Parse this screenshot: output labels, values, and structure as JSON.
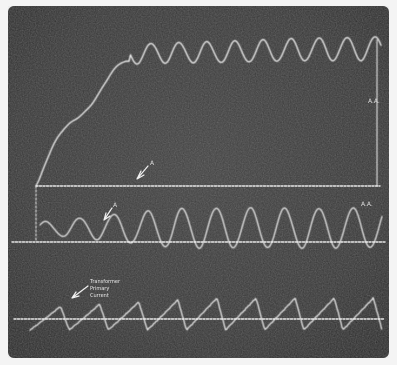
{
  "chart_data": {
    "type": "line",
    "title": "",
    "xlabel": "",
    "ylabel": "",
    "grid": false,
    "traces": [
      {
        "name": "upper trace",
        "pointer_label": "A",
        "rise_to_plateau": true,
        "oscillation_cycles": 9
      },
      {
        "name": "middle trace",
        "pointer_label": "A",
        "oscillation_cycles": 10
      },
      {
        "name": "lower trace",
        "label": "Transformer Primary Current",
        "oscillation_cycles": 9
      }
    ],
    "side_labels": [
      "A.A.",
      "A.A."
    ],
    "annotations": {
      "lower_trace_label_lines": [
        "Transformer",
        "Primary",
        "Current"
      ]
    },
    "colors": {
      "background": "#2f2f2f",
      "trace": "#f0f0f0",
      "border": "#f4f4f4"
    }
  }
}
